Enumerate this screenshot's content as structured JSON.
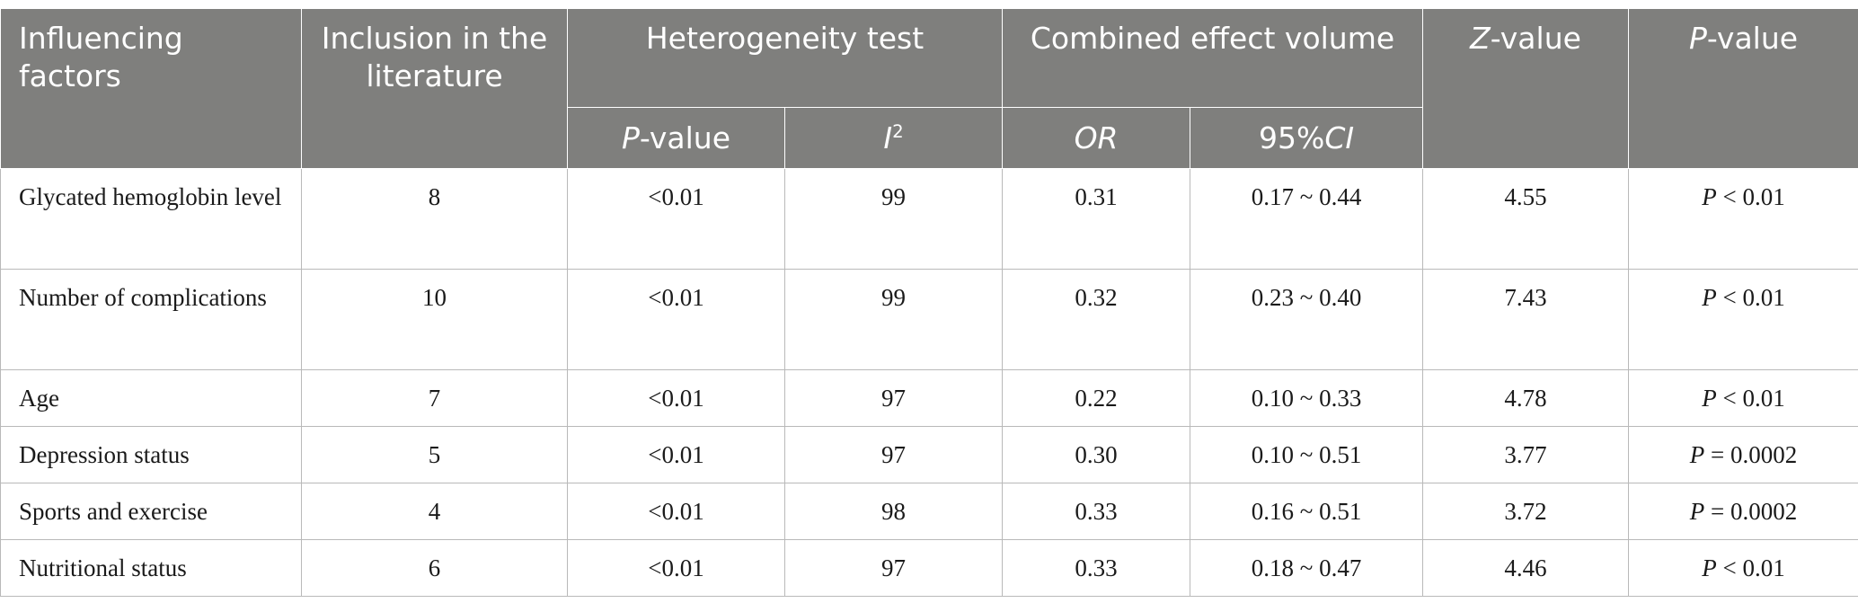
{
  "header": {
    "influencing_factors": "Influencing factors",
    "inclusion": "Inclusion in the literature",
    "heterogeneity_test": "Heterogeneity test",
    "combined_effect_volume": "Combined effect volume",
    "z_value_var": "Z",
    "z_value_suffix": "-value",
    "p_value_var": "P",
    "p_value_suffix": "-value",
    "het_p_value_var": "P",
    "het_p_value_suffix": "-value",
    "i2_var": "I",
    "i2_sup": "2",
    "or": "OR",
    "ci_prefix": "95%",
    "ci_var": "CI"
  },
  "rows": [
    {
      "factor": "Glycated hemoglobin level",
      "inclusion": "8",
      "het_p": "<0.01",
      "i2": "99",
      "or": "0.31",
      "ci": "0.17 ~ 0.44",
      "z": "4.55",
      "p_var": "P",
      "p_rest": " < 0.01"
    },
    {
      "factor": "Number of complications",
      "inclusion": "10",
      "het_p": "<0.01",
      "i2": "99",
      "or": "0.32",
      "ci": "0.23 ~ 0.40",
      "z": "7.43",
      "p_var": "P",
      "p_rest": " < 0.01"
    },
    {
      "factor": "Age",
      "inclusion": "7",
      "het_p": "<0.01",
      "i2": "97",
      "or": "0.22",
      "ci": "0.10 ~ 0.33",
      "z": "4.78",
      "p_var": "P",
      "p_rest": " < 0.01"
    },
    {
      "factor": "Depression status",
      "inclusion": "5",
      "het_p": "<0.01",
      "i2": "97",
      "or": "0.30",
      "ci": "0.10 ~ 0.51",
      "z": "3.77",
      "p_var": "P",
      "p_rest": " = 0.0002"
    },
    {
      "factor": "Sports and exercise",
      "inclusion": "4",
      "het_p": "<0.01",
      "i2": "98",
      "or": "0.33",
      "ci": "0.16 ~ 0.51",
      "z": "3.72",
      "p_var": "P",
      "p_rest": " = 0.0002"
    },
    {
      "factor": "Nutritional status",
      "inclusion": "6",
      "het_p": "<0.01",
      "i2": "97",
      "or": "0.33",
      "ci": "0.18 ~ 0.47",
      "z": "4.46",
      "p_var": "P",
      "p_rest": " < 0.01"
    }
  ]
}
